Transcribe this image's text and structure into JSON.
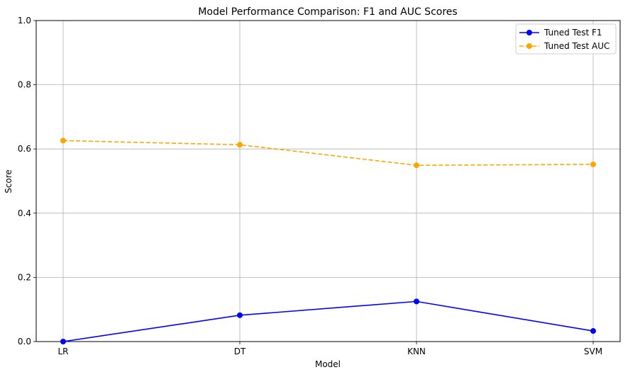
{
  "chart_data": {
    "type": "line",
    "title": "Model Performance Comparison: F1 and AUC Scores",
    "xlabel": "Model",
    "ylabel": "Score",
    "categories": [
      "LR",
      "DT",
      "KNN",
      "SVM"
    ],
    "ylim": [
      0,
      1.0
    ],
    "yticks": [
      0.0,
      0.2,
      0.4,
      0.6,
      0.8,
      1.0
    ],
    "ytick_labels": [
      "0.0",
      "0.2",
      "0.4",
      "0.6",
      "0.8",
      "1.0"
    ],
    "grid": true,
    "legend_position": "top-right",
    "series": [
      {
        "name": "Tuned Test F1",
        "values": [
          0.0,
          0.082,
          0.125,
          0.033
        ],
        "color": "#0000ff",
        "style": "solid",
        "marker": "circle"
      },
      {
        "name": "Tuned Test AUC",
        "values": [
          0.626,
          0.613,
          0.549,
          0.552
        ],
        "color": "#ffa500",
        "style": "dashed",
        "marker": "circle"
      }
    ]
  }
}
